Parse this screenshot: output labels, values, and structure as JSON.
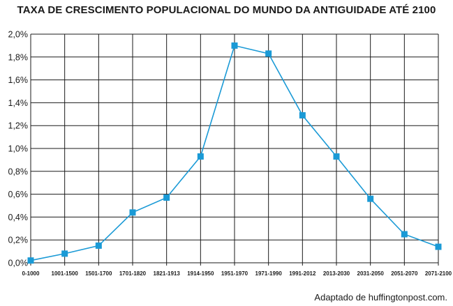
{
  "chart_data": {
    "type": "line",
    "title": "TAXA DE CRESCIMENTO POPULACIONAL DO MUNDO DA ANTIGUIDADE ATÉ 2100",
    "xlabel": "",
    "ylabel": "",
    "categories": [
      "0-1000",
      "1001-1500",
      "1501-1700",
      "1701-1820",
      "1821-1913",
      "1914-1950",
      "1951-1970",
      "1971-1990",
      "1991-2012",
      "2013-2030",
      "2031-2050",
      "2051-2070",
      "2071-2100"
    ],
    "series": [
      {
        "values": [
          0.02,
          0.08,
          0.15,
          0.44,
          0.57,
          0.93,
          1.9,
          1.83,
          1.29,
          0.93,
          0.56,
          0.25,
          0.14
        ]
      }
    ],
    "ylim": [
      0,
      2.0
    ],
    "yticks": [
      "0,0%",
      "0,2%",
      "0,4%",
      "0,6%",
      "0,8%",
      "1,0%",
      "1,2%",
      "1,4%",
      "1,6%",
      "1,8%",
      "2,0%"
    ],
    "grid": true,
    "line_color": "#1a9ad6",
    "marker_color": "#1a9ad6",
    "marker": "square"
  },
  "source_note": "Adaptado de huffingtonpost.com."
}
